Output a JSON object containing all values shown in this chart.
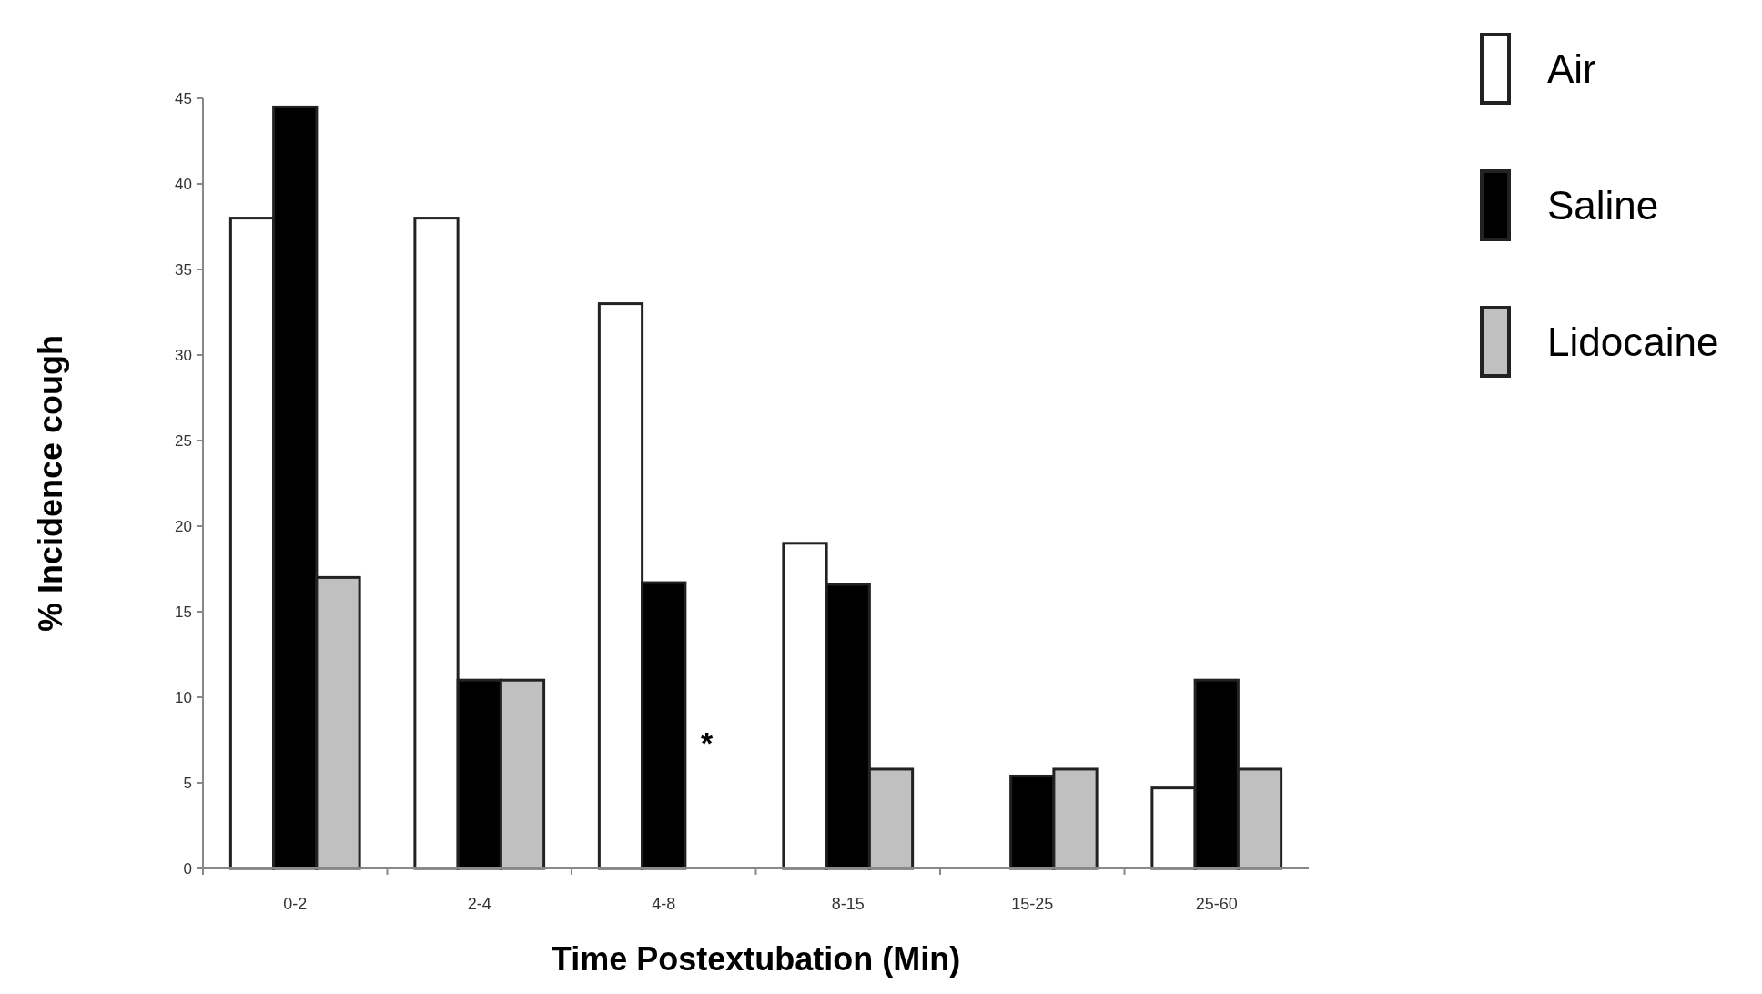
{
  "chart_data": {
    "type": "bar",
    "xlabel": "Time Postextubation (Min)",
    "ylabel": "% Incidence  cough",
    "categories": [
      "0-2",
      "2-4",
      "4-8",
      "8-15",
      "15-25",
      "25-60"
    ],
    "series": [
      {
        "name": "Air",
        "color": "#ffffff",
        "values": [
          38,
          38,
          33,
          19,
          0,
          4.7
        ]
      },
      {
        "name": "Saline",
        "color": "#000000",
        "values": [
          44.5,
          11,
          16.7,
          16.6,
          5.4,
          11
        ]
      },
      {
        "name": "Lidocaine",
        "color": "#c0c0c0",
        "values": [
          17,
          11,
          0,
          5.8,
          5.8,
          5.8
        ]
      }
    ],
    "ylim": [
      0,
      45
    ],
    "yticks": [
      0,
      5,
      10,
      15,
      20,
      25,
      30,
      35,
      40,
      45
    ],
    "grid": false,
    "legend": "top right",
    "annotations": [
      "*"
    ]
  }
}
